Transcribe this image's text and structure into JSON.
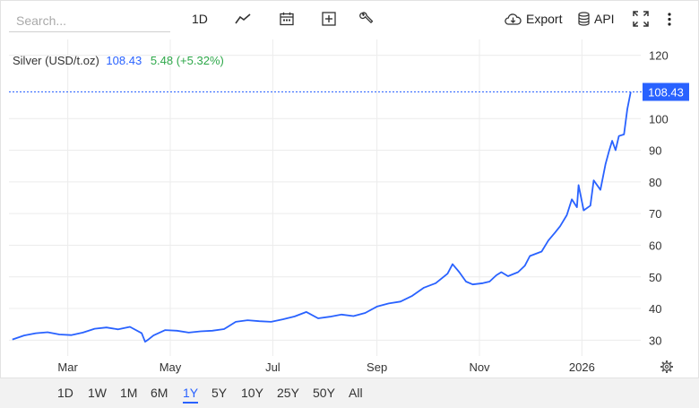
{
  "toolbar": {
    "search_placeholder": "Search...",
    "interval_label": "1D",
    "export_label": "Export",
    "api_label": "API"
  },
  "legend": {
    "name": "Silver (USD/t.oz)",
    "price": "108.43",
    "change": "5.48 (+5.32%)"
  },
  "range_buttons": [
    "1D",
    "1W",
    "1M",
    "6M",
    "1Y",
    "5Y",
    "10Y",
    "25Y",
    "50Y",
    "All"
  ],
  "active_range": "1Y",
  "colors": {
    "line": "#2962ff",
    "up": "#2ea84a",
    "grid": "#ececec",
    "axis_text": "#333333"
  },
  "icons": [
    "line-chart-icon",
    "calendar-icon",
    "add-compare-icon",
    "wrench-icon",
    "cloud-download-icon",
    "database-icon",
    "fullscreen-icon",
    "more-vertical-icon",
    "settings-gear-icon"
  ],
  "chart_data": {
    "type": "line",
    "title": "",
    "xlabel": "",
    "ylabel": "",
    "ylim": [
      25,
      125
    ],
    "yticks": [
      30,
      40,
      50,
      60,
      70,
      80,
      90,
      100,
      120
    ],
    "xtick_labels": [
      "Mar",
      "May",
      "Jul",
      "Sep",
      "Nov",
      "2026"
    ],
    "xlim": [
      "2025-01-25",
      "2026-02-05"
    ],
    "xtick_dates": [
      "2025-03-01",
      "2025-05-01",
      "2025-07-01",
      "2025-09-01",
      "2025-11-01",
      "2026-01-01"
    ],
    "last_value_label": "108.43",
    "grid": true,
    "series": [
      {
        "values": [
          [
            "2025-01-27",
            30.2
          ],
          [
            "2025-02-03",
            31.5
          ],
          [
            "2025-02-10",
            32.2
          ],
          [
            "2025-02-17",
            32.5
          ],
          [
            "2025-02-24",
            31.8
          ],
          [
            "2025-03-03",
            31.6
          ],
          [
            "2025-03-10",
            32.4
          ],
          [
            "2025-03-17",
            33.6
          ],
          [
            "2025-03-24",
            34.0
          ],
          [
            "2025-03-31",
            33.4
          ],
          [
            "2025-04-07",
            34.2
          ],
          [
            "2025-04-14",
            32.2
          ],
          [
            "2025-04-16",
            29.5
          ],
          [
            "2025-04-18",
            30.2
          ],
          [
            "2025-04-21",
            31.5
          ],
          [
            "2025-04-28",
            33.2
          ],
          [
            "2025-05-05",
            33.0
          ],
          [
            "2025-05-12",
            32.4
          ],
          [
            "2025-05-19",
            32.8
          ],
          [
            "2025-05-26",
            33.0
          ],
          [
            "2025-06-02",
            33.5
          ],
          [
            "2025-06-09",
            35.8
          ],
          [
            "2025-06-16",
            36.3
          ],
          [
            "2025-06-23",
            36.0
          ],
          [
            "2025-06-30",
            35.8
          ],
          [
            "2025-07-07",
            36.6
          ],
          [
            "2025-07-14",
            37.5
          ],
          [
            "2025-07-21",
            38.9
          ],
          [
            "2025-07-28",
            36.9
          ],
          [
            "2025-08-04",
            37.4
          ],
          [
            "2025-08-11",
            38.1
          ],
          [
            "2025-08-18",
            37.6
          ],
          [
            "2025-08-25",
            38.6
          ],
          [
            "2025-09-01",
            40.6
          ],
          [
            "2025-09-08",
            41.6
          ],
          [
            "2025-09-15",
            42.2
          ],
          [
            "2025-09-22",
            44.0
          ],
          [
            "2025-09-29",
            46.6
          ],
          [
            "2025-10-06",
            48.0
          ],
          [
            "2025-10-13",
            51.0
          ],
          [
            "2025-10-16",
            54.0
          ],
          [
            "2025-10-20",
            51.5
          ],
          [
            "2025-10-24",
            48.5
          ],
          [
            "2025-10-28",
            47.6
          ],
          [
            "2025-11-03",
            48.0
          ],
          [
            "2025-11-07",
            48.5
          ],
          [
            "2025-11-11",
            50.5
          ],
          [
            "2025-11-14",
            51.5
          ],
          [
            "2025-11-18",
            50.2
          ],
          [
            "2025-11-24",
            51.5
          ],
          [
            "2025-11-28",
            53.5
          ],
          [
            "2025-12-01",
            56.6
          ],
          [
            "2025-12-08",
            58.0
          ],
          [
            "2025-12-12",
            61.5
          ],
          [
            "2025-12-16",
            64.0
          ],
          [
            "2025-12-19",
            66.0
          ],
          [
            "2025-12-23",
            69.5
          ],
          [
            "2025-12-26",
            74.5
          ],
          [
            "2025-12-29",
            72.0
          ],
          [
            "2025-12-30",
            79.0
          ],
          [
            "2026-01-02",
            71.0
          ],
          [
            "2026-01-06",
            72.5
          ],
          [
            "2026-01-08",
            80.5
          ],
          [
            "2026-01-12",
            77.5
          ],
          [
            "2026-01-15",
            85.5
          ],
          [
            "2026-01-17",
            89.5
          ],
          [
            "2026-01-19",
            93.0
          ],
          [
            "2026-01-21",
            90.0
          ],
          [
            "2026-01-23",
            94.5
          ],
          [
            "2026-01-26",
            95.0
          ],
          [
            "2026-01-28",
            103.0
          ],
          [
            "2026-01-30",
            108.43
          ]
        ]
      }
    ]
  }
}
